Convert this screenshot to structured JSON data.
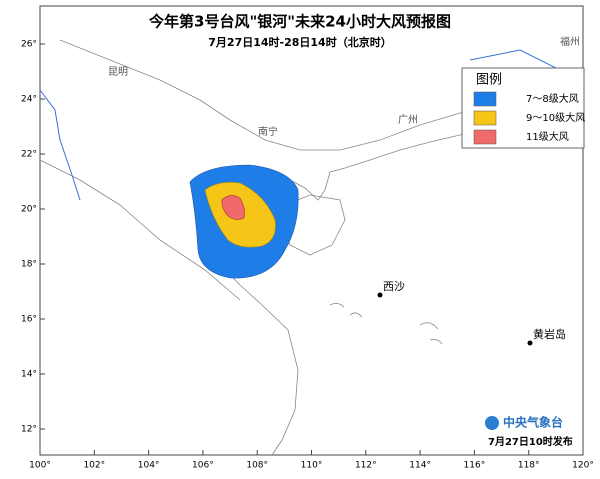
{
  "header": {
    "title": "今年第3号台风\"银河\"未来24小时大风预报图",
    "subtitle": "7月27日14时-28日14时（北京时）"
  },
  "axes": {
    "lon_ticks": [
      {
        "value": 100,
        "label": "100°"
      },
      {
        "value": 102,
        "label": "102°"
      },
      {
        "value": 104,
        "label": "104°"
      },
      {
        "value": 106,
        "label": "106°"
      },
      {
        "value": 108,
        "label": "108°"
      },
      {
        "value": 110,
        "label": "110°"
      },
      {
        "value": 112,
        "label": "112°"
      },
      {
        "value": 114,
        "label": "114°"
      },
      {
        "value": 116,
        "label": "116°"
      },
      {
        "value": 118,
        "label": "118°"
      },
      {
        "value": 120,
        "label": "120°"
      }
    ],
    "lat_ticks": [
      {
        "value": 12,
        "label": "12°"
      },
      {
        "value": 14,
        "label": "14°"
      },
      {
        "value": 16,
        "label": "16°"
      },
      {
        "value": 18,
        "label": "18°"
      },
      {
        "value": 20,
        "label": "20°"
      },
      {
        "value": 22,
        "label": "22°"
      },
      {
        "value": 24,
        "label": "24°"
      },
      {
        "value": 26,
        "label": "26°"
      }
    ]
  },
  "legend": {
    "title": "图例",
    "items": [
      {
        "label": "7～8级大风",
        "color": "#1e7de6"
      },
      {
        "label": "9～10级大风",
        "color": "#f5c518"
      },
      {
        "label": "11级大风",
        "color": "#f06a6a"
      }
    ]
  },
  "places": [
    "昆明",
    "南宁",
    "广州",
    "福州",
    "西沙",
    "黄岩岛"
  ],
  "footer": {
    "agency": "中央气象台",
    "issued": "7月27日10时发布"
  }
}
